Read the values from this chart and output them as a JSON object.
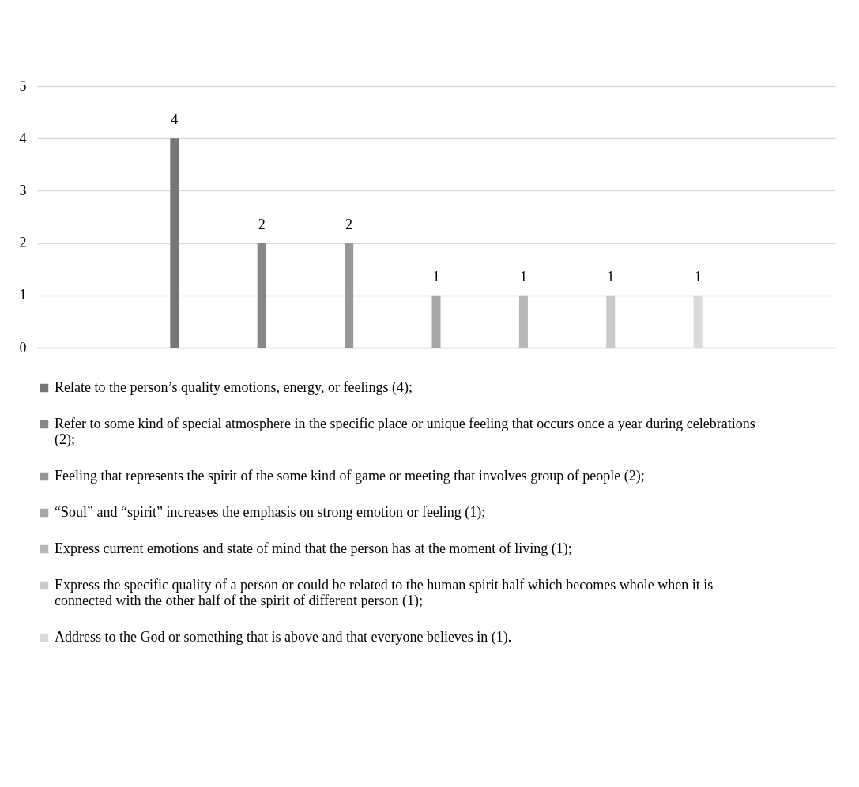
{
  "chart_data": {
    "type": "bar",
    "categories": [
      null
    ],
    "series": [
      {
        "name": "Relate to the person’s quality emotions, energy, or feelings (4);",
        "color": "#757575",
        "values": [
          4
        ]
      },
      {
        "name": "Refer to some kind of special atmosphere in the specific place or unique feeling that occurs once a year during celebrations (2);",
        "color": "#868686",
        "values": [
          2
        ]
      },
      {
        "name": "Feeling that represents the spirit of the some kind of game or meeting that involves group of people (2);",
        "color": "#979797",
        "values": [
          2
        ]
      },
      {
        "name": "“Soul” and “spirit” increases the emphasis on strong emotion or feeling (1);",
        "color": "#a6a6a6",
        "values": [
          1
        ]
      },
      {
        "name": "Express current emotions and state of mind that the person has at the moment of living (1);",
        "color": "#b7b7b7",
        "values": [
          1
        ]
      },
      {
        "name": "Express the specific quality of a person or could be related to the human spirit half which becomes whole when it is connected with the other half of the spirit of different person (1);",
        "color": "#c9c9c9",
        "values": [
          1
        ]
      },
      {
        "name": "Address to the God or something that is above and that everyone believes in (1).",
        "color": "#dadada",
        "values": [
          1
        ]
      }
    ],
    "ylim": [
      0,
      5
    ],
    "yticks": [
      0,
      1,
      2,
      3,
      4,
      5
    ],
    "grid": "y",
    "legend": "bottom",
    "data_labels": true
  }
}
